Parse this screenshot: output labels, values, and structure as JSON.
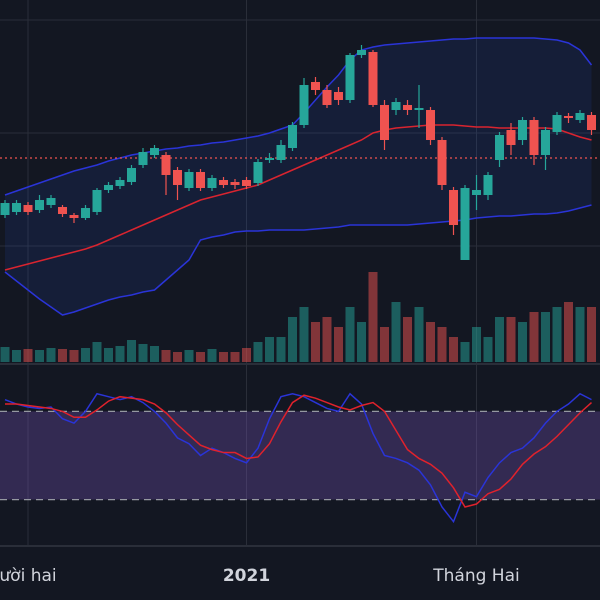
{
  "chart_data": {
    "type": "candlestick",
    "ylim": [
      0,
      345
    ],
    "price_grid": [
      325,
      212,
      99
    ],
    "price_line": 187,
    "up_color": "#26a69a",
    "down_color": "#ef5350",
    "open": [
      130,
      133,
      140,
      135,
      140,
      138,
      130,
      127,
      133,
      155,
      159,
      163,
      180,
      190,
      190,
      175,
      157,
      173,
      157,
      165,
      163,
      165,
      162,
      185,
      185,
      197,
      220,
      263,
      255,
      253,
      245,
      290,
      293,
      240,
      235,
      240,
      235,
      235,
      205,
      155,
      85,
      150,
      150,
      185,
      215,
      205,
      225,
      190,
      213,
      229,
      225,
      230
    ],
    "close": [
      142,
      142,
      133,
      145,
      147,
      131,
      127,
      137,
      155,
      160,
      165,
      177,
      193,
      197,
      170,
      160,
      173,
      157,
      167,
      160,
      160,
      159,
      183,
      187,
      200,
      220,
      260,
      255,
      240,
      245,
      290,
      295,
      240,
      205,
      243,
      235,
      237,
      205,
      160,
      120,
      157,
      155,
      170,
      210,
      200,
      225,
      190,
      215,
      230,
      227,
      232,
      215
    ],
    "high": [
      145,
      145,
      143,
      150,
      150,
      140,
      132,
      140,
      157,
      163,
      168,
      180,
      197,
      200,
      193,
      178,
      176,
      176,
      170,
      168,
      166,
      168,
      186,
      192,
      205,
      223,
      267,
      268,
      260,
      258,
      292,
      300,
      295,
      245,
      247,
      245,
      260,
      238,
      208,
      158,
      160,
      170,
      173,
      213,
      222,
      228,
      228,
      218,
      233,
      232,
      235,
      233
    ],
    "low": [
      127,
      130,
      130,
      132,
      137,
      128,
      122,
      125,
      130,
      152,
      156,
      160,
      177,
      187,
      150,
      145,
      154,
      154,
      154,
      157,
      156,
      156,
      159,
      182,
      182,
      194,
      217,
      250,
      237,
      240,
      242,
      287,
      238,
      195,
      230,
      230,
      217,
      200,
      155,
      110,
      85,
      135,
      145,
      178,
      190,
      200,
      180,
      175,
      210,
      222,
      222,
      210
    ],
    "volume": [
      15,
      12,
      13,
      12,
      14,
      13,
      12,
      14,
      20,
      14,
      16,
      22,
      18,
      16,
      12,
      10,
      12,
      10,
      13,
      10,
      10,
      14,
      20,
      25,
      25,
      45,
      55,
      40,
      45,
      35,
      55,
      40,
      90,
      35,
      60,
      45,
      55,
      40,
      35,
      25,
      20,
      35,
      25,
      45,
      45,
      40,
      50,
      50,
      55,
      60,
      55,
      55
    ],
    "bands": [
      {
        "color": "#2a34d8",
        "values": [
          150,
          154,
          158,
          162,
          166,
          170,
          174,
          177,
          180,
          184,
          187,
          190,
          192,
          194,
          196,
          197,
          199,
          200,
          202,
          203,
          205,
          207,
          209,
          212,
          216,
          220,
          232,
          245,
          258,
          270,
          285,
          295,
          298,
          300,
          301,
          302,
          303,
          304,
          305,
          306,
          306,
          307,
          307,
          307,
          307,
          307,
          307,
          306,
          305,
          302,
          295,
          280
        ]
      },
      {
        "color": "#d9242f",
        "values": [
          75,
          78,
          81,
          84,
          87,
          90,
          93,
          96,
          100,
          105,
          110,
          115,
          120,
          125,
          130,
          135,
          140,
          145,
          148,
          151,
          154,
          157,
          160,
          165,
          170,
          175,
          180,
          185,
          190,
          195,
          200,
          205,
          212,
          215,
          217,
          218,
          219,
          220,
          220,
          220,
          219,
          218,
          218,
          217,
          217,
          217,
          217,
          217,
          216,
          212,
          208,
          205
        ]
      },
      {
        "color": "#2a34d8",
        "values": [
          73,
          64,
          55,
          46,
          38,
          30,
          33,
          37,
          41,
          45,
          48,
          50,
          53,
          55,
          65,
          75,
          85,
          105,
          108,
          110,
          113,
          114,
          114,
          115,
          115,
          115,
          115,
          116,
          117,
          118,
          120,
          120,
          120,
          120,
          120,
          120,
          121,
          122,
          123,
          124,
          125,
          127,
          128,
          129,
          129,
          130,
          131,
          131,
          132,
          134,
          137,
          140
        ]
      }
    ],
    "stoch_ylim": [
      0,
      100
    ],
    "stoch_levels": [
      80,
      20
    ],
    "stoch": [
      {
        "color": "#2a34d8",
        "values": [
          88,
          85,
          83,
          82,
          83,
          75,
          72,
          80,
          92,
          90,
          88,
          90,
          86,
          80,
          72,
          62,
          58,
          50,
          55,
          52,
          48,
          45,
          55,
          75,
          90,
          92,
          90,
          86,
          82,
          80,
          92,
          85,
          65,
          50,
          48,
          45,
          40,
          30,
          15,
          5,
          25,
          22,
          35,
          45,
          52,
          55,
          62,
          72,
          80,
          85,
          92,
          88
        ]
      },
      {
        "color": "#e0222c",
        "values": [
          85,
          85,
          84,
          83,
          82,
          80,
          76,
          76,
          81,
          87,
          90,
          89,
          88,
          85,
          79,
          71,
          64,
          57,
          54,
          52,
          52,
          48,
          49,
          58,
          73,
          86,
          91,
          89,
          86,
          83,
          81,
          84,
          86,
          80,
          67,
          54,
          48,
          44,
          38,
          28,
          15,
          17,
          24,
          27,
          34,
          44,
          51,
          56,
          63,
          71,
          79,
          86
        ]
      }
    ],
    "time_labels": [
      {
        "label": "ười hai",
        "index": 2
      },
      {
        "label": "2021",
        "index": 21
      },
      {
        "label": "Tháng Hai",
        "index": 41
      }
    ]
  }
}
